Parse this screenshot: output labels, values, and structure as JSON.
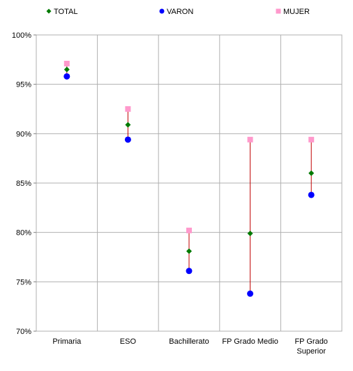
{
  "chart_data": {
    "type": "scatter",
    "title": "",
    "xlabel": "",
    "ylabel": "",
    "categories": [
      "Primaria",
      "ESO",
      "Bachillerato",
      "FP Grado Medio",
      "FP Grado Superior"
    ],
    "ylim": [
      70,
      100
    ],
    "y_ticks": [
      "70%",
      "75%",
      "80%",
      "85%",
      "90%",
      "95%",
      "100%"
    ],
    "grid": true,
    "legend_position": "top",
    "range_line": {
      "from_series": "VARON",
      "to_series": "MUJER",
      "color": "#c00000"
    },
    "series": [
      {
        "name": "TOTAL",
        "marker": "diamond",
        "color": "#007a00",
        "values": [
          96.5,
          90.9,
          78.1,
          79.9,
          86.0
        ]
      },
      {
        "name": "VARON",
        "marker": "circle",
        "color": "#0000ff",
        "values": [
          95.8,
          89.4,
          76.1,
          73.8,
          83.8
        ]
      },
      {
        "name": "MUJER",
        "marker": "square",
        "color": "#ff99cc",
        "values": [
          97.1,
          92.5,
          80.2,
          89.4,
          89.4
        ]
      }
    ]
  }
}
